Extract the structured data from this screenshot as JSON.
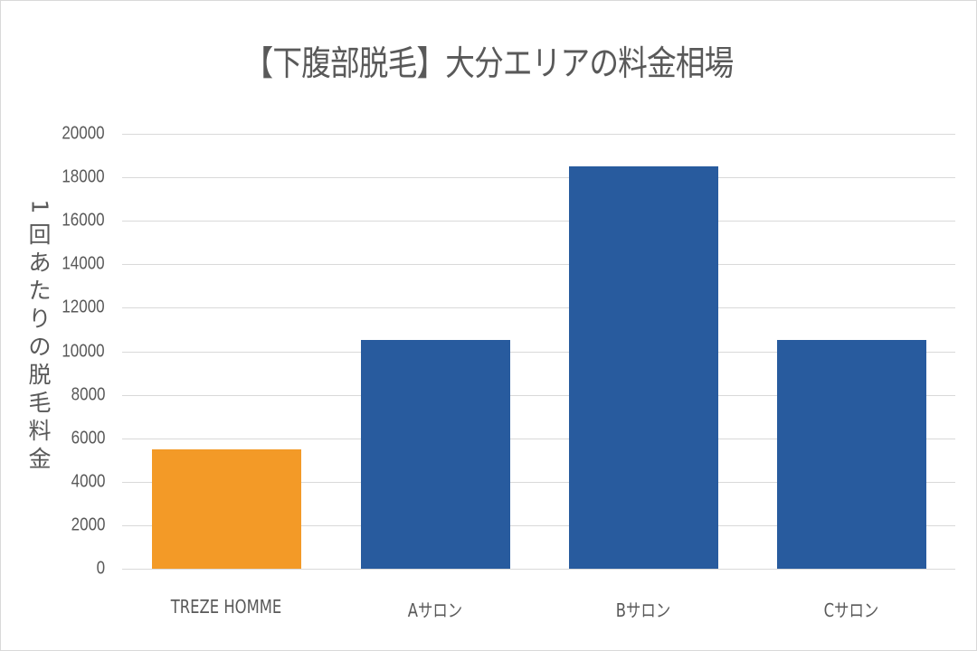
{
  "chart_data": {
    "type": "bar",
    "title": "【下腹部脱毛】大分エリアの料金相場",
    "xlabel": "",
    "ylabel": "1回あたりの脱毛料金",
    "categories": [
      "TREZE HOMME",
      "Aサロン",
      "Bサロン",
      "Cサロン"
    ],
    "values": [
      5500,
      10500,
      18500,
      10500
    ],
    "colors": [
      "#f39a27",
      "#285b9e",
      "#285b9e",
      "#285b9e"
    ],
    "ylim": [
      0,
      20000
    ],
    "yticks": [
      "0",
      "2000",
      "4000",
      "6000",
      "8000",
      "10000",
      "12000",
      "14000",
      "16000",
      "18000",
      "20000"
    ],
    "grid": true,
    "legend": "none"
  }
}
